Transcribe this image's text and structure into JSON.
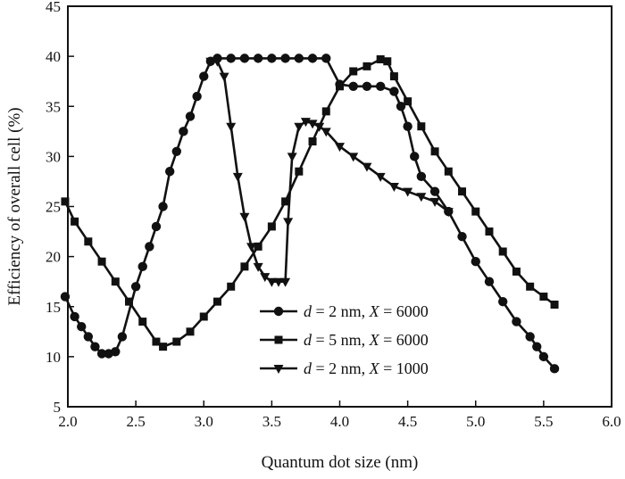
{
  "chart_data": {
    "type": "line",
    "title": "",
    "xlabel": "Quantum dot size (nm)",
    "ylabel": "Efficiency of overall cell (%)",
    "xlim": [
      2.0,
      6.0
    ],
    "ylim": [
      5,
      45
    ],
    "xticks": [
      "2.0",
      "2.5",
      "3.0",
      "3.5",
      "4.0",
      "4.5",
      "5.0",
      "5.5",
      "6.0"
    ],
    "yticks": [
      "5",
      "10",
      "15",
      "20",
      "25",
      "30",
      "35",
      "40",
      "45"
    ],
    "grid": false,
    "legend_position": "bottom-center",
    "series": [
      {
        "name": "d = 2 nm, X = 6000",
        "legend": {
          "a": "d",
          "b": " = 2 nm, ",
          "c": "X",
          "d": " = 6000"
        },
        "marker": "circle",
        "x": [
          1.98,
          2.05,
          2.1,
          2.15,
          2.2,
          2.25,
          2.3,
          2.35,
          2.4,
          2.5,
          2.55,
          2.6,
          2.65,
          2.7,
          2.75,
          2.8,
          2.85,
          2.9,
          2.95,
          3.0,
          3.05,
          3.1,
          3.2,
          3.3,
          3.4,
          3.5,
          3.6,
          3.7,
          3.8,
          3.9,
          4.0,
          4.1,
          4.2,
          4.3,
          4.4,
          4.45,
          4.5,
          4.55,
          4.6,
          4.7,
          4.8,
          4.9,
          5.0,
          5.1,
          5.2,
          5.3,
          5.4,
          5.45,
          5.5,
          5.58
        ],
        "y": [
          16.0,
          14.0,
          13.0,
          12.0,
          11.0,
          10.3,
          10.3,
          10.5,
          12.0,
          17.0,
          19.0,
          21.0,
          23.0,
          25.0,
          28.5,
          30.5,
          32.5,
          34.0,
          36.0,
          38.0,
          39.5,
          39.8,
          39.8,
          39.8,
          39.8,
          39.8,
          39.8,
          39.8,
          39.8,
          39.8,
          37.2,
          37.0,
          37.0,
          37.0,
          36.5,
          35.0,
          33.0,
          30.0,
          28.0,
          26.5,
          24.5,
          22.0,
          19.5,
          17.5,
          15.5,
          13.5,
          12.0,
          11.0,
          10.0,
          8.8
        ]
      },
      {
        "name": "d = 5 nm, X = 6000",
        "legend": {
          "a": "d",
          "b": " = 5 nm, ",
          "c": "X",
          "d": " = 6000"
        },
        "marker": "square",
        "x": [
          1.98,
          2.05,
          2.15,
          2.25,
          2.35,
          2.45,
          2.55,
          2.65,
          2.7,
          2.8,
          2.9,
          3.0,
          3.1,
          3.2,
          3.3,
          3.4,
          3.5,
          3.6,
          3.7,
          3.8,
          3.9,
          4.0,
          4.1,
          4.2,
          4.3,
          4.35,
          4.4,
          4.5,
          4.6,
          4.7,
          4.8,
          4.9,
          5.0,
          5.1,
          5.2,
          5.3,
          5.4,
          5.5,
          5.58
        ],
        "y": [
          25.5,
          23.5,
          21.5,
          19.5,
          17.5,
          15.5,
          13.5,
          11.5,
          11.0,
          11.5,
          12.5,
          14.0,
          15.5,
          17.0,
          19.0,
          21.0,
          23.0,
          25.5,
          28.5,
          31.5,
          34.5,
          37.0,
          38.5,
          39.0,
          39.7,
          39.5,
          38.0,
          35.5,
          33.0,
          30.5,
          28.5,
          26.5,
          24.5,
          22.5,
          20.5,
          18.5,
          17.0,
          16.0,
          15.2
        ]
      },
      {
        "name": "d = 2 nm, X = 1000",
        "legend": {
          "a": "d",
          "b": " = 2 nm, ",
          "c": "X",
          "d": " = 1000"
        },
        "marker": "triangle-down",
        "x": [
          3.05,
          3.1,
          3.15,
          3.2,
          3.25,
          3.3,
          3.35,
          3.4,
          3.45,
          3.5,
          3.55,
          3.6,
          3.62,
          3.65,
          3.7,
          3.75,
          3.8,
          3.85,
          3.9,
          4.0,
          4.1,
          4.2,
          4.3,
          4.4,
          4.5,
          4.6,
          4.7,
          4.8
        ],
        "y": [
          39.5,
          39.5,
          38.0,
          33.0,
          28.0,
          24.0,
          21.0,
          19.0,
          18.0,
          17.5,
          17.5,
          17.5,
          23.5,
          30.0,
          33.0,
          33.5,
          33.3,
          33.0,
          32.5,
          31.0,
          30.0,
          29.0,
          28.0,
          27.0,
          26.5,
          26.0,
          25.5,
          24.5
        ]
      }
    ]
  }
}
